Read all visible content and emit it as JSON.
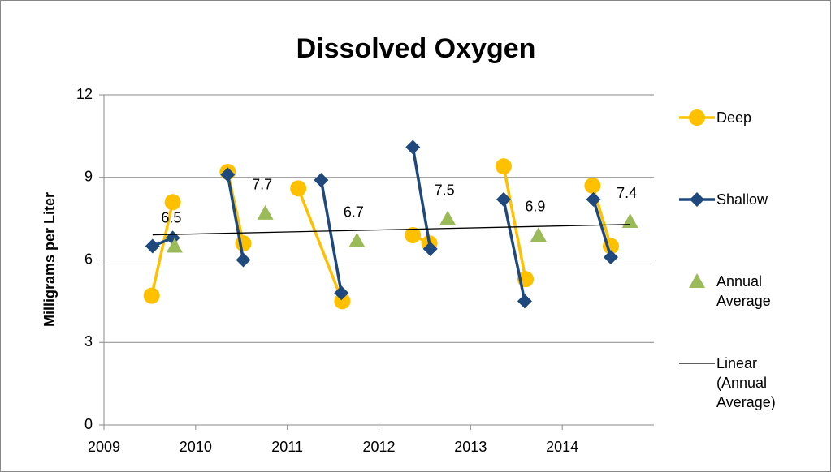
{
  "chart_data": {
    "type": "scatter",
    "title": "Dissolved Oxygen",
    "y_label": "Milligrams per Liter",
    "xlim": [
      2009,
      2015
    ],
    "xticks": [
      2009,
      2010,
      2011,
      2012,
      2013,
      2014
    ],
    "ylim": [
      0,
      12
    ],
    "yticks": [
      0,
      3,
      6,
      9,
      12
    ],
    "grid": true,
    "legend": "right",
    "series": [
      {
        "name": "Deep",
        "color": "#FFC000",
        "marker": "circle",
        "line": true,
        "x": [
          2009.52,
          2009.75,
          null,
          2010.35,
          2010.52,
          null,
          2011.12,
          2011.6,
          null,
          2012.37,
          2012.55,
          null,
          2013.36,
          2013.6,
          null,
          2014.33,
          2014.53
        ],
        "values": [
          4.7,
          8.1,
          null,
          9.2,
          6.6,
          null,
          8.6,
          4.5,
          null,
          6.9,
          6.6,
          null,
          9.4,
          5.3,
          null,
          8.7,
          6.5
        ]
      },
      {
        "name": "Shallow",
        "color": "#1F497D",
        "marker": "diamond",
        "line": true,
        "x": [
          2009.53,
          2009.75,
          null,
          2010.35,
          2010.52,
          null,
          2011.37,
          2011.59,
          null,
          2012.37,
          2012.56,
          null,
          2013.36,
          2013.59,
          null,
          2014.34,
          2014.53
        ],
        "values": [
          6.5,
          6.8,
          null,
          9.1,
          6.0,
          null,
          8.9,
          4.8,
          null,
          10.1,
          6.4,
          null,
          8.2,
          4.5,
          null,
          8.2,
          6.1
        ]
      },
      {
        "name": "Annual Average",
        "color": "#9BBB59",
        "marker": "triangle",
        "line": false,
        "x": [
          2009.77,
          2010.76,
          2011.76,
          2012.75,
          2013.74,
          2014.74
        ],
        "values": [
          6.5,
          7.7,
          6.7,
          7.5,
          6.9,
          7.4
        ]
      },
      {
        "name": "Linear (Annual Average)",
        "color": "#000000",
        "marker": "none",
        "line": true,
        "x": [
          2009.53,
          2014.74
        ],
        "values": [
          6.91,
          7.29
        ]
      }
    ]
  }
}
